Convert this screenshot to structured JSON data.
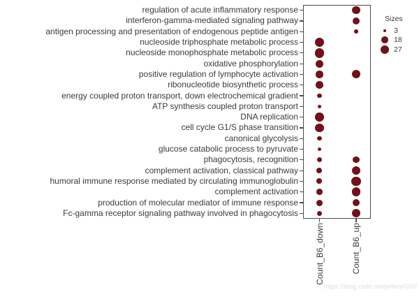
{
  "watermark": "https://blog.csdn.net/jeffery0207",
  "chart_data": {
    "type": "scatter",
    "title": "",
    "xlabel": "",
    "ylabel": "",
    "grid": false,
    "legend_position": "right",
    "dot_color": "#731019",
    "axis_color": "#4a4a4a",
    "columns": [
      "Count_B6_down",
      "Count_B6_up"
    ],
    "legend": {
      "title": "Sizes",
      "entries": [
        3,
        18,
        27
      ]
    },
    "rows": [
      {
        "label": "regulation of acute inflammatory response",
        "down": null,
        "up": 24
      },
      {
        "label": "interferon-gamma-mediated signaling pathway",
        "down": null,
        "up": 19
      },
      {
        "label": "antigen processing and presentation of endogenous peptide antigen",
        "down": null,
        "up": 6
      },
      {
        "label": "nucleoside triphosphate metabolic process",
        "down": 36,
        "up": null
      },
      {
        "label": "nucleoside monophosphate metabolic process",
        "down": 34,
        "up": null
      },
      {
        "label": "oxidative phosphorylation",
        "down": 23,
        "up": null
      },
      {
        "label": "positive regulation of lymphocyte activation",
        "down": 21,
        "up": 27
      },
      {
        "label": "ribonucleotide biosynthetic process",
        "down": 21,
        "up": null
      },
      {
        "label": "energy coupled proton transport, down electrochemical gradient",
        "down": 7,
        "up": null
      },
      {
        "label": "ATP synthesis coupled proton transport",
        "down": 6,
        "up": null
      },
      {
        "label": "DNA replication",
        "down": 30,
        "up": null
      },
      {
        "label": "cell cycle G1/S phase transition",
        "down": 30,
        "up": null
      },
      {
        "label": "canonical glycolysis",
        "down": 7,
        "up": null
      },
      {
        "label": "glucose catabolic process to pyruvate",
        "down": 6,
        "up": null
      },
      {
        "label": "phagocytosis, recognition",
        "down": 10,
        "up": 16
      },
      {
        "label": "complement activation, classical pathway",
        "down": 12,
        "up": 27
      },
      {
        "label": "humoral immune response mediated by circulating immunoglobulin",
        "down": 12,
        "up": 33
      },
      {
        "label": "complement activation",
        "down": 14,
        "up": 30
      },
      {
        "label": "production of molecular mediator of immune response",
        "down": 15,
        "up": 21
      },
      {
        "label": "Fc-gamma receptor signaling pathway involved in phagocytosis",
        "down": 9,
        "up": 27
      }
    ]
  }
}
